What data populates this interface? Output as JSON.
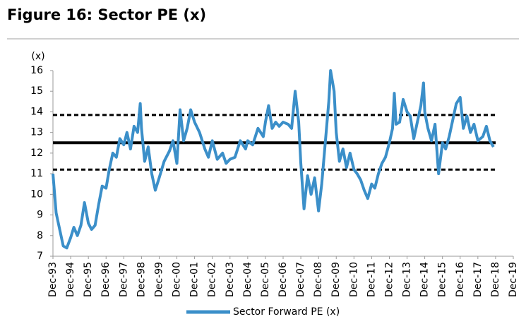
{
  "chart_data": {
    "type": "line",
    "title": "Figure 16: Sector PE (x)",
    "y_label": "(x)",
    "xlim": [
      1993.92,
      2019.92
    ],
    "xticks": [
      {
        "value": 1993.92,
        "label": "Dec-93"
      },
      {
        "value": 1994.92,
        "label": "Dec-94"
      },
      {
        "value": 1995.92,
        "label": "Dec-95"
      },
      {
        "value": 1996.92,
        "label": "Dec-96"
      },
      {
        "value": 1997.92,
        "label": "Dec-97"
      },
      {
        "value": 1998.92,
        "label": "Dec-98"
      },
      {
        "value": 1999.92,
        "label": "Dec-99"
      },
      {
        "value": 2000.92,
        "label": "Dec-00"
      },
      {
        "value": 2001.92,
        "label": "Dec-01"
      },
      {
        "value": 2002.92,
        "label": "Dec-02"
      },
      {
        "value": 2003.92,
        "label": "Dec-03"
      },
      {
        "value": 2004.92,
        "label": "Dec-04"
      },
      {
        "value": 2005.92,
        "label": "Dec-05"
      },
      {
        "value": 2006.92,
        "label": "Dec-06"
      },
      {
        "value": 2007.92,
        "label": "Dec-07"
      },
      {
        "value": 2008.92,
        "label": "Dec-08"
      },
      {
        "value": 2009.92,
        "label": "Dec-09"
      },
      {
        "value": 2010.92,
        "label": "Dec-10"
      },
      {
        "value": 2011.92,
        "label": "Dec-11"
      },
      {
        "value": 2012.92,
        "label": "Dec-12"
      },
      {
        "value": 2013.92,
        "label": "Dec-13"
      },
      {
        "value": 2014.92,
        "label": "Dec-14"
      },
      {
        "value": 2015.92,
        "label": "Dec-15"
      },
      {
        "value": 2016.92,
        "label": "Dec-16"
      },
      {
        "value": 2017.92,
        "label": "Dec-17"
      },
      {
        "value": 2018.92,
        "label": "Dec-18"
      },
      {
        "value": 2019.92,
        "label": "Dec-19"
      }
    ],
    "ylim": [
      7,
      16
    ],
    "yticks": [
      7,
      8,
      9,
      10,
      11,
      12,
      13,
      14,
      15,
      16
    ],
    "grid": false,
    "legend": "bottom",
    "x": [
      1993.92,
      1994.1,
      1994.3,
      1994.5,
      1994.7,
      1994.92,
      1995.1,
      1995.3,
      1995.5,
      1995.7,
      1995.92,
      1996.1,
      1996.3,
      1996.5,
      1996.7,
      1996.92,
      1997.1,
      1997.3,
      1997.5,
      1997.7,
      1997.92,
      1998.1,
      1998.3,
      1998.5,
      1998.7,
      1998.85,
      1998.92,
      1999.1,
      1999.3,
      1999.5,
      1999.7,
      1999.92,
      2000.2,
      2000.5,
      2000.7,
      2000.92,
      2001.1,
      2001.3,
      2001.5,
      2001.7,
      2001.92,
      2002.2,
      2002.5,
      2002.7,
      2002.92,
      2003.2,
      2003.5,
      2003.7,
      2003.92,
      2004.2,
      2004.5,
      2004.8,
      2004.92,
      2005.2,
      2005.5,
      2005.8,
      2005.92,
      2006.1,
      2006.3,
      2006.5,
      2006.7,
      2006.92,
      2007.2,
      2007.4,
      2007.6,
      2007.8,
      2007.92,
      2008.1,
      2008.3,
      2008.5,
      2008.7,
      2008.92,
      2009.1,
      2009.3,
      2009.5,
      2009.6,
      2009.8,
      2009.92,
      2010.1,
      2010.3,
      2010.5,
      2010.7,
      2010.92,
      2011.1,
      2011.3,
      2011.5,
      2011.7,
      2011.92,
      2012.1,
      2012.3,
      2012.5,
      2012.7,
      2012.92,
      2013.1,
      2013.2,
      2013.3,
      2013.5,
      2013.7,
      2013.92,
      2014.1,
      2014.3,
      2014.5,
      2014.7,
      2014.85,
      2014.92,
      2015.1,
      2015.3,
      2015.5,
      2015.7,
      2015.92,
      2016.1,
      2016.3,
      2016.5,
      2016.7,
      2016.92,
      2017.1,
      2017.3,
      2017.5,
      2017.7,
      2017.92,
      2018.2,
      2018.4,
      2018.6,
      2018.8
    ],
    "series": [
      {
        "name": "Sector Forward PE (x)",
        "color": "#3b8fc9",
        "values": [
          11.0,
          9.1,
          8.3,
          7.5,
          7.4,
          7.9,
          8.4,
          8.0,
          8.5,
          9.6,
          8.6,
          8.3,
          8.5,
          9.5,
          10.4,
          10.3,
          11.2,
          12.0,
          11.8,
          12.7,
          12.4,
          13.0,
          12.2,
          13.3,
          13.0,
          14.4,
          13.2,
          11.6,
          12.3,
          11.0,
          10.2,
          10.8,
          11.6,
          12.1,
          12.6,
          11.5,
          14.1,
          12.6,
          13.2,
          14.1,
          13.5,
          13.0,
          12.2,
          11.8,
          12.6,
          11.7,
          12.0,
          11.5,
          11.7,
          11.8,
          12.6,
          12.2,
          12.6,
          12.4,
          13.2,
          12.8,
          13.5,
          14.3,
          13.2,
          13.5,
          13.3,
          13.5,
          13.4,
          13.2,
          15.0,
          13.5,
          11.5,
          9.3,
          10.9,
          10.0,
          10.8,
          9.2,
          10.5,
          12.5,
          14.5,
          16.0,
          15.0,
          13.0,
          11.6,
          12.2,
          11.3,
          12.0,
          11.2,
          11.0,
          10.7,
          10.2,
          9.8,
          10.5,
          10.3,
          11.0,
          11.5,
          11.8,
          12.5,
          13.2,
          14.9,
          13.4,
          13.5,
          14.6,
          14.0,
          13.8,
          12.7,
          13.5,
          14.3,
          15.4,
          14.0,
          13.2,
          12.6,
          13.4,
          11.0,
          12.5,
          12.2,
          12.8,
          13.6,
          14.4,
          14.7,
          13.2,
          13.8,
          13.0,
          13.4,
          12.6,
          12.8,
          13.3,
          12.6,
          12.3
        ]
      }
    ],
    "reference_lines": [
      {
        "value": 12.5,
        "style": "solid",
        "color": "#000000"
      },
      {
        "value": 13.85,
        "style": "dashed",
        "color": "#000000"
      },
      {
        "value": 11.2,
        "style": "dashed",
        "color": "#000000"
      }
    ]
  }
}
